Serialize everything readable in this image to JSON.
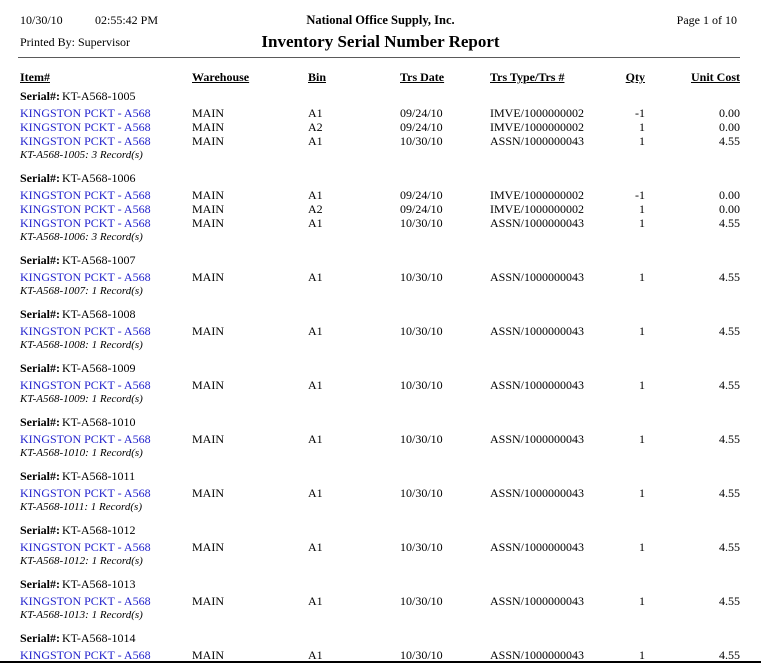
{
  "header": {
    "date": "10/30/10",
    "time": "02:55:42 PM",
    "company": "National Office Supply, Inc.",
    "page_indicator": "Page 1 of 10",
    "printed_by": "Printed By: Supervisor",
    "title": "Inventory Serial Number Report"
  },
  "labels": {
    "serial": "Serial#:"
  },
  "columns": [
    "Item#",
    "Warehouse",
    "Bin",
    "Trs Date",
    "Trs Type/Trs #",
    "Qty",
    "Unit Cost"
  ],
  "colors": {
    "item_link": "#2222CC"
  },
  "groups": [
    {
      "serial": "KT-A568-1005",
      "rows": [
        {
          "item": "KINGSTON PCKT - A568",
          "warehouse": "MAIN",
          "bin": "A1",
          "trs_date": "09/24/10",
          "trs_type": "IMVE/1000000002",
          "qty": "-1",
          "unit_cost": "0.00"
        },
        {
          "item": "KINGSTON PCKT - A568",
          "warehouse": "MAIN",
          "bin": "A2",
          "trs_date": "09/24/10",
          "trs_type": "IMVE/1000000002",
          "qty": "1",
          "unit_cost": "0.00"
        },
        {
          "item": "KINGSTON PCKT - A568",
          "warehouse": "MAIN",
          "bin": "A1",
          "trs_date": "10/30/10",
          "trs_type": "ASSN/1000000043",
          "qty": "1",
          "unit_cost": "4.55"
        }
      ],
      "footer": "KT-A568-1005: 3 Record(s)"
    },
    {
      "serial": "KT-A568-1006",
      "rows": [
        {
          "item": "KINGSTON PCKT - A568",
          "warehouse": "MAIN",
          "bin": "A1",
          "trs_date": "09/24/10",
          "trs_type": "IMVE/1000000002",
          "qty": "-1",
          "unit_cost": "0.00"
        },
        {
          "item": "KINGSTON PCKT - A568",
          "warehouse": "MAIN",
          "bin": "A2",
          "trs_date": "09/24/10",
          "trs_type": "IMVE/1000000002",
          "qty": "1",
          "unit_cost": "0.00"
        },
        {
          "item": "KINGSTON PCKT - A568",
          "warehouse": "MAIN",
          "bin": "A1",
          "trs_date": "10/30/10",
          "trs_type": "ASSN/1000000043",
          "qty": "1",
          "unit_cost": "4.55"
        }
      ],
      "footer": "KT-A568-1006: 3 Record(s)"
    },
    {
      "serial": "KT-A568-1007",
      "rows": [
        {
          "item": "KINGSTON PCKT - A568",
          "warehouse": "MAIN",
          "bin": "A1",
          "trs_date": "10/30/10",
          "trs_type": "ASSN/1000000043",
          "qty": "1",
          "unit_cost": "4.55"
        }
      ],
      "footer": "KT-A568-1007: 1 Record(s)"
    },
    {
      "serial": "KT-A568-1008",
      "rows": [
        {
          "item": "KINGSTON PCKT - A568",
          "warehouse": "MAIN",
          "bin": "A1",
          "trs_date": "10/30/10",
          "trs_type": "ASSN/1000000043",
          "qty": "1",
          "unit_cost": "4.55"
        }
      ],
      "footer": "KT-A568-1008: 1 Record(s)"
    },
    {
      "serial": "KT-A568-1009",
      "rows": [
        {
          "item": "KINGSTON PCKT - A568",
          "warehouse": "MAIN",
          "bin": "A1",
          "trs_date": "10/30/10",
          "trs_type": "ASSN/1000000043",
          "qty": "1",
          "unit_cost": "4.55"
        }
      ],
      "footer": "KT-A568-1009: 1 Record(s)"
    },
    {
      "serial": "KT-A568-1010",
      "rows": [
        {
          "item": "KINGSTON PCKT - A568",
          "warehouse": "MAIN",
          "bin": "A1",
          "trs_date": "10/30/10",
          "trs_type": "ASSN/1000000043",
          "qty": "1",
          "unit_cost": "4.55"
        }
      ],
      "footer": "KT-A568-1010: 1 Record(s)"
    },
    {
      "serial": "KT-A568-1011",
      "rows": [
        {
          "item": "KINGSTON PCKT - A568",
          "warehouse": "MAIN",
          "bin": "A1",
          "trs_date": "10/30/10",
          "trs_type": "ASSN/1000000043",
          "qty": "1",
          "unit_cost": "4.55"
        }
      ],
      "footer": "KT-A568-1011: 1 Record(s)"
    },
    {
      "serial": "KT-A568-1012",
      "rows": [
        {
          "item": "KINGSTON PCKT - A568",
          "warehouse": "MAIN",
          "bin": "A1",
          "trs_date": "10/30/10",
          "trs_type": "ASSN/1000000043",
          "qty": "1",
          "unit_cost": "4.55"
        }
      ],
      "footer": "KT-A568-1012: 1 Record(s)"
    },
    {
      "serial": "KT-A568-1013",
      "rows": [
        {
          "item": "KINGSTON PCKT - A568",
          "warehouse": "MAIN",
          "bin": "A1",
          "trs_date": "10/30/10",
          "trs_type": "ASSN/1000000043",
          "qty": "1",
          "unit_cost": "4.55"
        }
      ],
      "footer": "KT-A568-1013: 1 Record(s)"
    },
    {
      "serial": "KT-A568-1014",
      "rows": [
        {
          "item": "KINGSTON PCKT - A568",
          "warehouse": "MAIN",
          "bin": "A1",
          "trs_date": "10/30/10",
          "trs_type": "ASSN/1000000043",
          "qty": "1",
          "unit_cost": "4.55"
        }
      ],
      "footer": null
    }
  ]
}
